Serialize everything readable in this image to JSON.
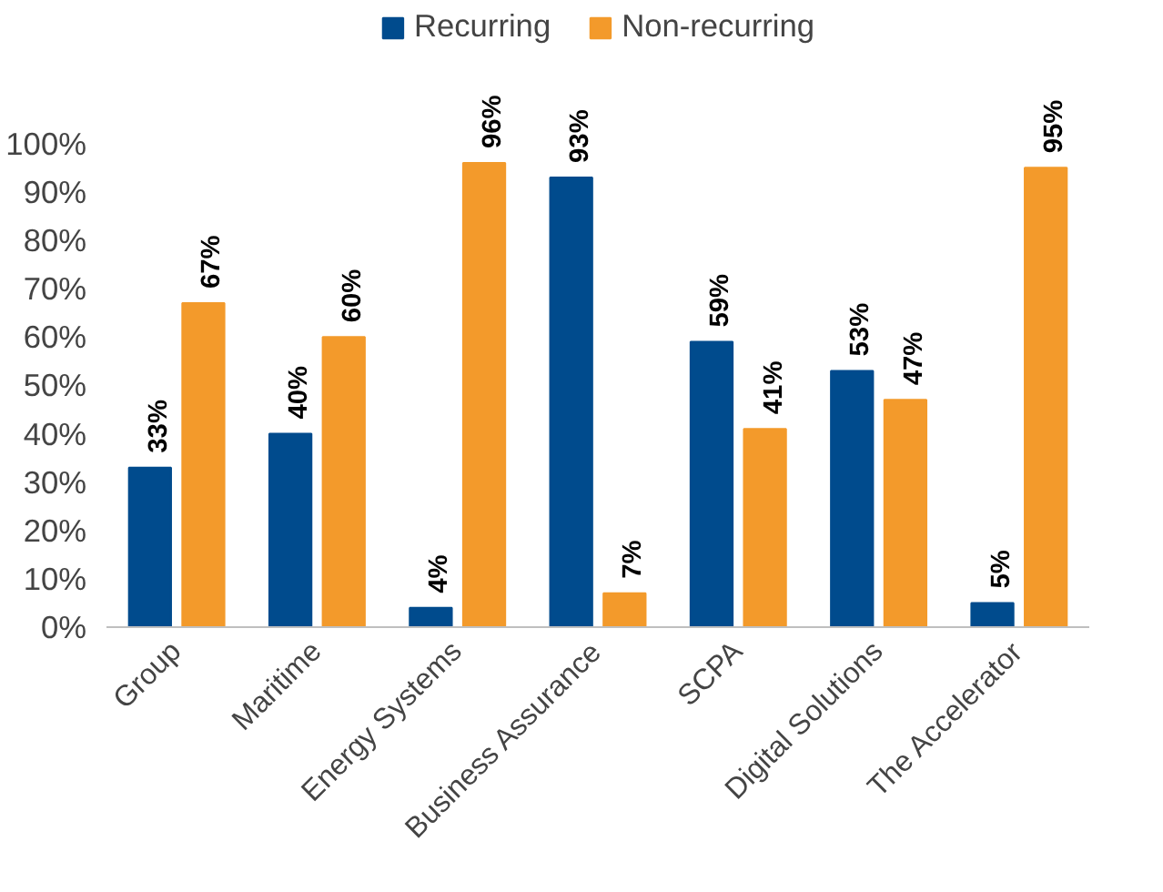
{
  "chart_data": {
    "type": "bar",
    "categories": [
      "Group",
      "Maritime",
      "Energy Systems",
      "Business Assurance",
      "SCPA",
      "Digital Solutions",
      "The Accelerator"
    ],
    "series": [
      {
        "name": "Recurring",
        "color": "#004b8d",
        "values": [
          33,
          40,
          4,
          93,
          59,
          53,
          5
        ],
        "value_labels": [
          "33%",
          "40%",
          "4%",
          "93%",
          "59%",
          "53%",
          "5%"
        ]
      },
      {
        "name": "Non-recurring",
        "color": "#f39a2b",
        "values": [
          67,
          60,
          96,
          7,
          41,
          47,
          95
        ],
        "value_labels": [
          "67%",
          "60%",
          "96%",
          "7%",
          "41%",
          "47%",
          "95%"
        ]
      }
    ],
    "ylim": [
      0,
      128
    ],
    "yticks": [
      {
        "value": 0,
        "label": "0%"
      },
      {
        "value": 10,
        "label": "10%"
      },
      {
        "value": 20,
        "label": "20%"
      },
      {
        "value": 30,
        "label": "30%"
      },
      {
        "value": 40,
        "label": "40%"
      },
      {
        "value": 50,
        "label": "50%"
      },
      {
        "value": 60,
        "label": "60%"
      },
      {
        "value": 70,
        "label": "70%"
      },
      {
        "value": 80,
        "label": "80%"
      },
      {
        "value": 90,
        "label": "90%"
      },
      {
        "value": 100,
        "label": "100%"
      }
    ],
    "grid": false,
    "legend": "top"
  }
}
